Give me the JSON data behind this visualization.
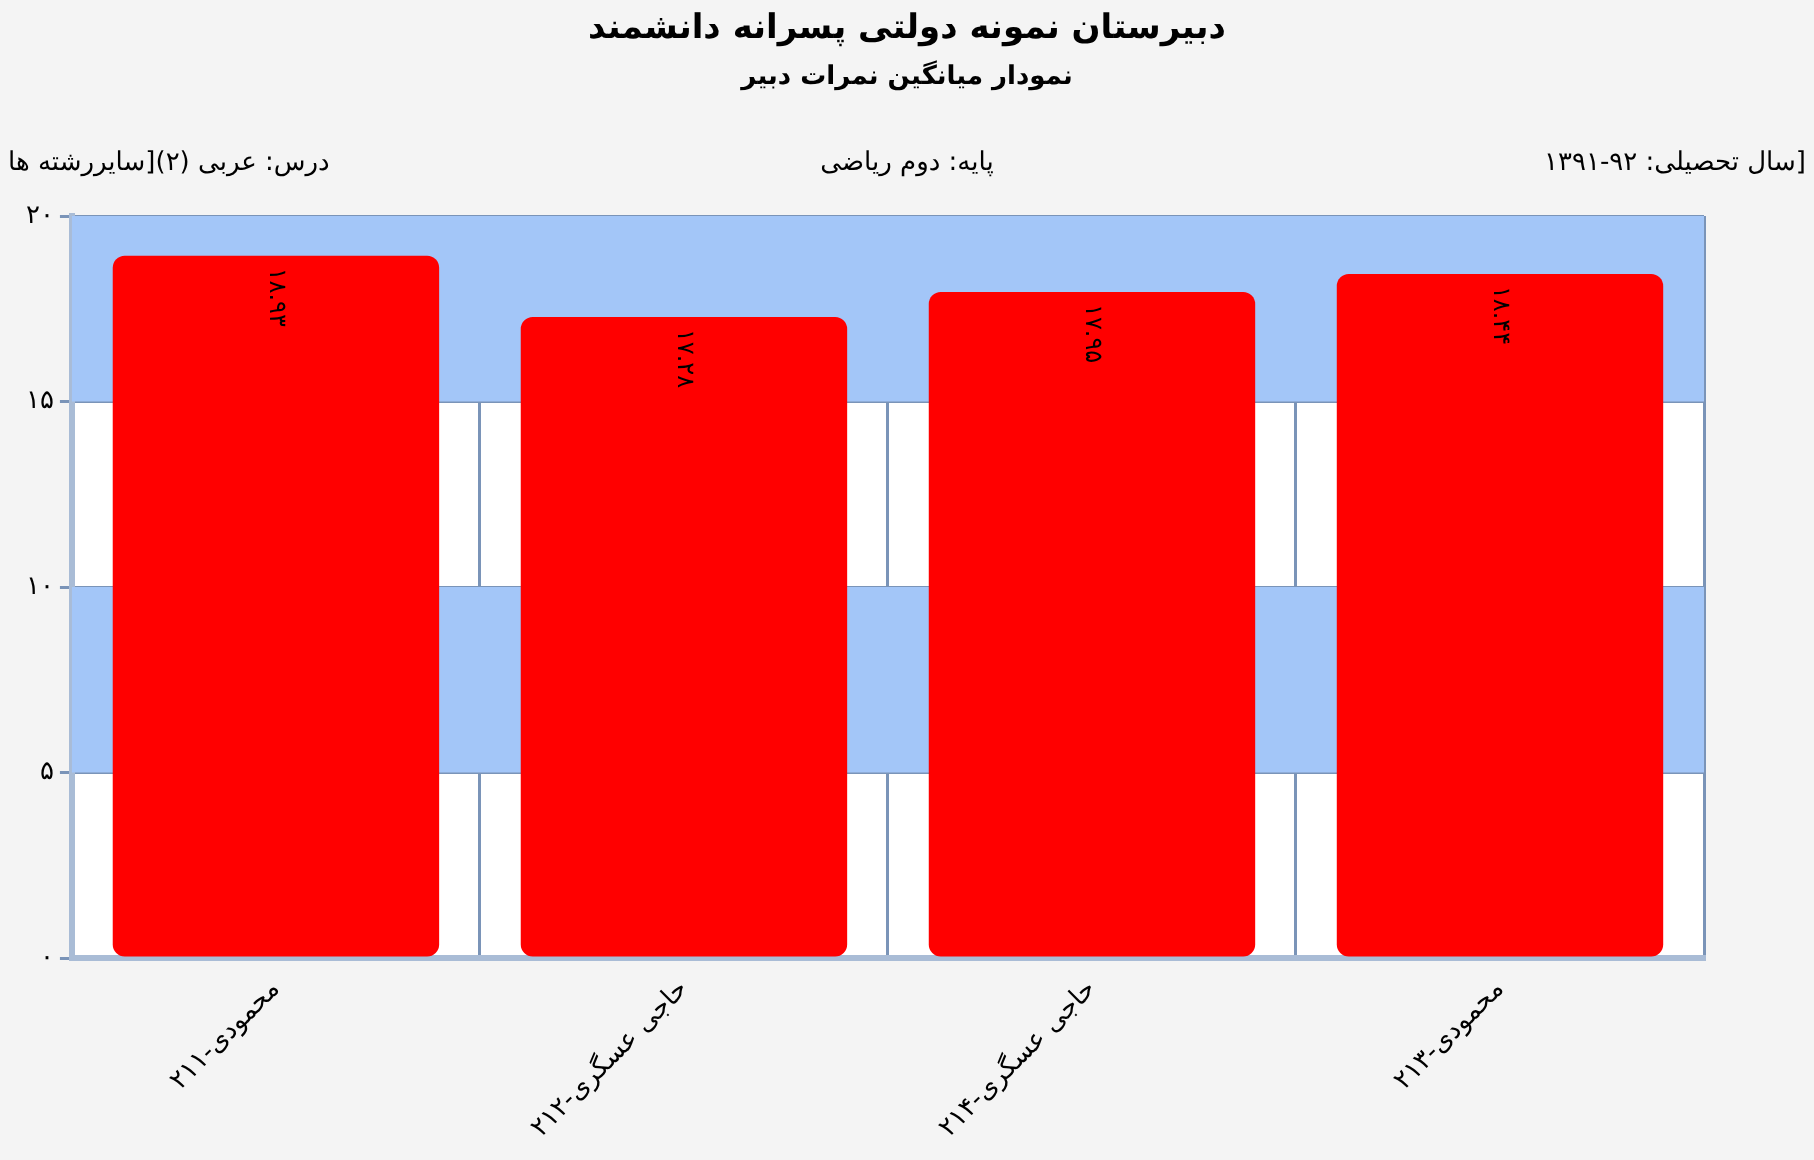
{
  "chart_data": {
    "type": "bar",
    "title": "دبیرستان  نمونه دولتی پسرانه دانشمند",
    "subtitle": "نمودار میانگین نمرات دبیر",
    "annotations": [
      "[سال تحصیلی: ۹۲-۱۳۹۱",
      "پایه: دوم ریاضی",
      "درس: عربی  (۲)[سایررشته ها"
    ],
    "categories": [
      "محمودی-۲۱۱",
      "حاجی عسگری-۲۱۲",
      "حاجی عسگری-۲۱۴",
      "محمودی-۲۱۳"
    ],
    "values": [
      18.93,
      17.28,
      17.95,
      18.44
    ],
    "value_labels": [
      "۱۸.۹۳",
      "۱۷.۲۸",
      "۱۷.۹۵",
      "۱۸.۴۴"
    ],
    "color": "#ff0000",
    "ylim": [
      0,
      20
    ],
    "yticks": [
      {
        "value": 0,
        "label": "۰"
      },
      {
        "value": 5,
        "label": "۵"
      },
      {
        "value": 10,
        "label": "۱۰"
      },
      {
        "value": 15,
        "label": "۱۵"
      },
      {
        "value": 20,
        "label": "۲۰"
      }
    ],
    "bands": [
      {
        "axis": "y",
        "from": 5,
        "to": 10,
        "color": "#a3c6f8"
      },
      {
        "axis": "y",
        "from": 15,
        "to": 20,
        "color": "#a3c6f8"
      }
    ],
    "grid": true,
    "legend": false
  }
}
